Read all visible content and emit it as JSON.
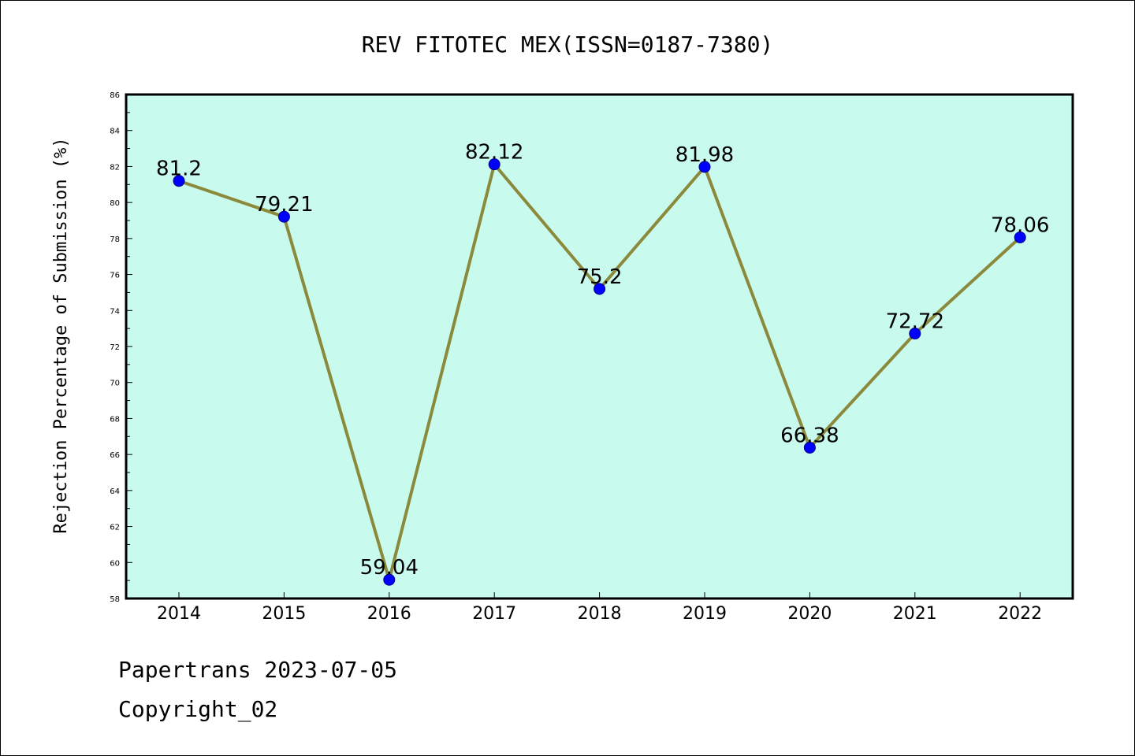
{
  "colors": {
    "plot_background": "#c8fbee",
    "line": "#8b8a3c",
    "marker": "#0000ff",
    "axis": "#000000"
  },
  "chart_data": {
    "type": "line",
    "title": "REV FITOTEC MEX(ISSN=0187-7380)",
    "xlabel": "",
    "ylabel": "Rejection Percentage of Submission (%)",
    "categories": [
      "2014",
      "2015",
      "2016",
      "2017",
      "2018",
      "2019",
      "2020",
      "2021",
      "2022"
    ],
    "values": [
      81.2,
      79.21,
      59.04,
      82.12,
      75.2,
      81.98,
      66.38,
      72.72,
      78.06
    ],
    "data_labels": [
      "81.2",
      "79.21",
      "59.04",
      "82.12",
      "75.2",
      "81.98",
      "66.38",
      "72.72",
      "78.06"
    ],
    "ylim": [
      58,
      86
    ],
    "yticks": [
      58,
      60,
      62,
      64,
      66,
      68,
      70,
      72,
      74,
      76,
      78,
      80,
      82,
      84,
      86
    ],
    "grid": false,
    "legend": "none"
  },
  "footer": {
    "line1": "Papertrans 2023-07-05",
    "line2": "Copyright_02"
  }
}
